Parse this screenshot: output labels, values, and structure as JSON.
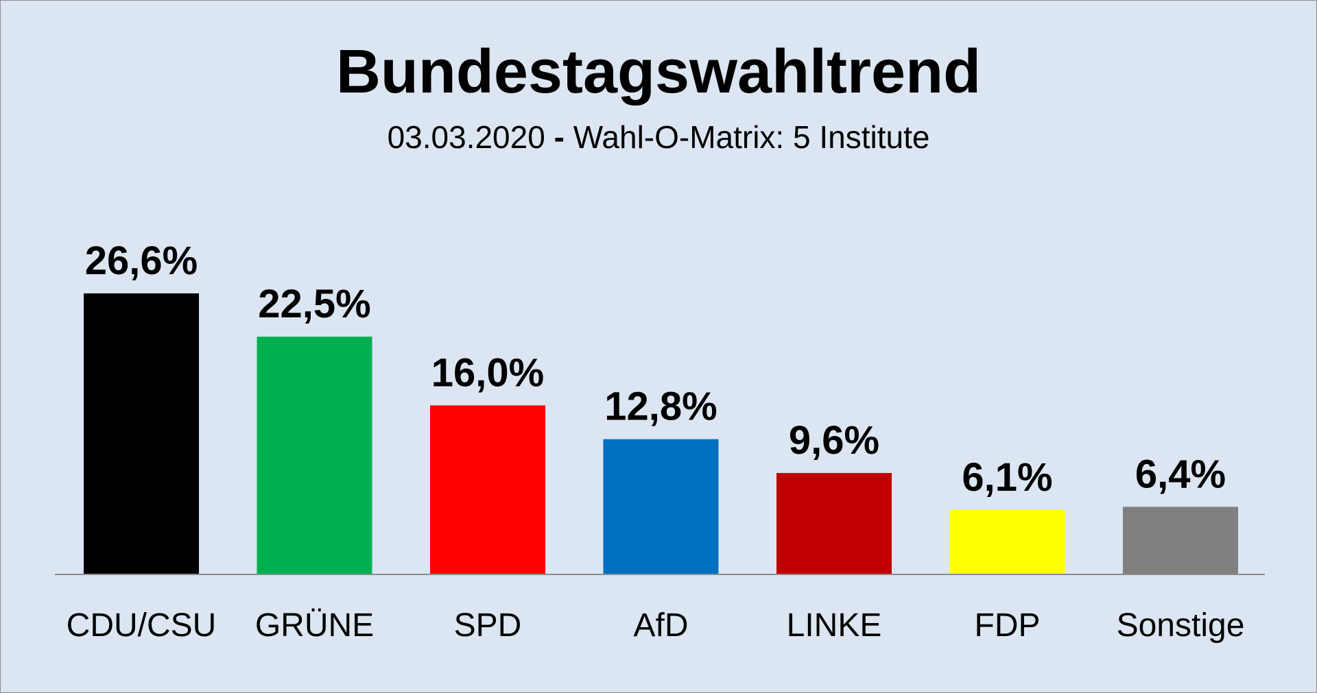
{
  "title": "Bundestagswahltrend",
  "subtitle": {
    "date": "03.03.2020",
    "separator": "-",
    "source": "Wahl-O-Matrix: 5 Institute"
  },
  "chart_data": {
    "type": "bar",
    "title": "Bundestagswahltrend",
    "subtitle": "03.03.2020 - Wahl-O-Matrix: 5 Institute",
    "xlabel": "",
    "ylabel": "",
    "grid": false,
    "ylim": [
      0,
      26.6
    ],
    "categories": [
      "CDU/CSU",
      "GRÜNE",
      "SPD",
      "AfD",
      "LINKE",
      "FDP",
      "Sonstige"
    ],
    "values": [
      26.6,
      22.5,
      16.0,
      12.8,
      9.6,
      6.1,
      6.4
    ],
    "value_labels": [
      "26,6%",
      "22,5%",
      "16,0%",
      "12,8%",
      "9,6%",
      "6,1%",
      "6,4%"
    ],
    "colors": [
      "#000000",
      "#00b050",
      "#ff0000",
      "#0070c0",
      "#c00000",
      "#ffff00",
      "#808080"
    ]
  }
}
